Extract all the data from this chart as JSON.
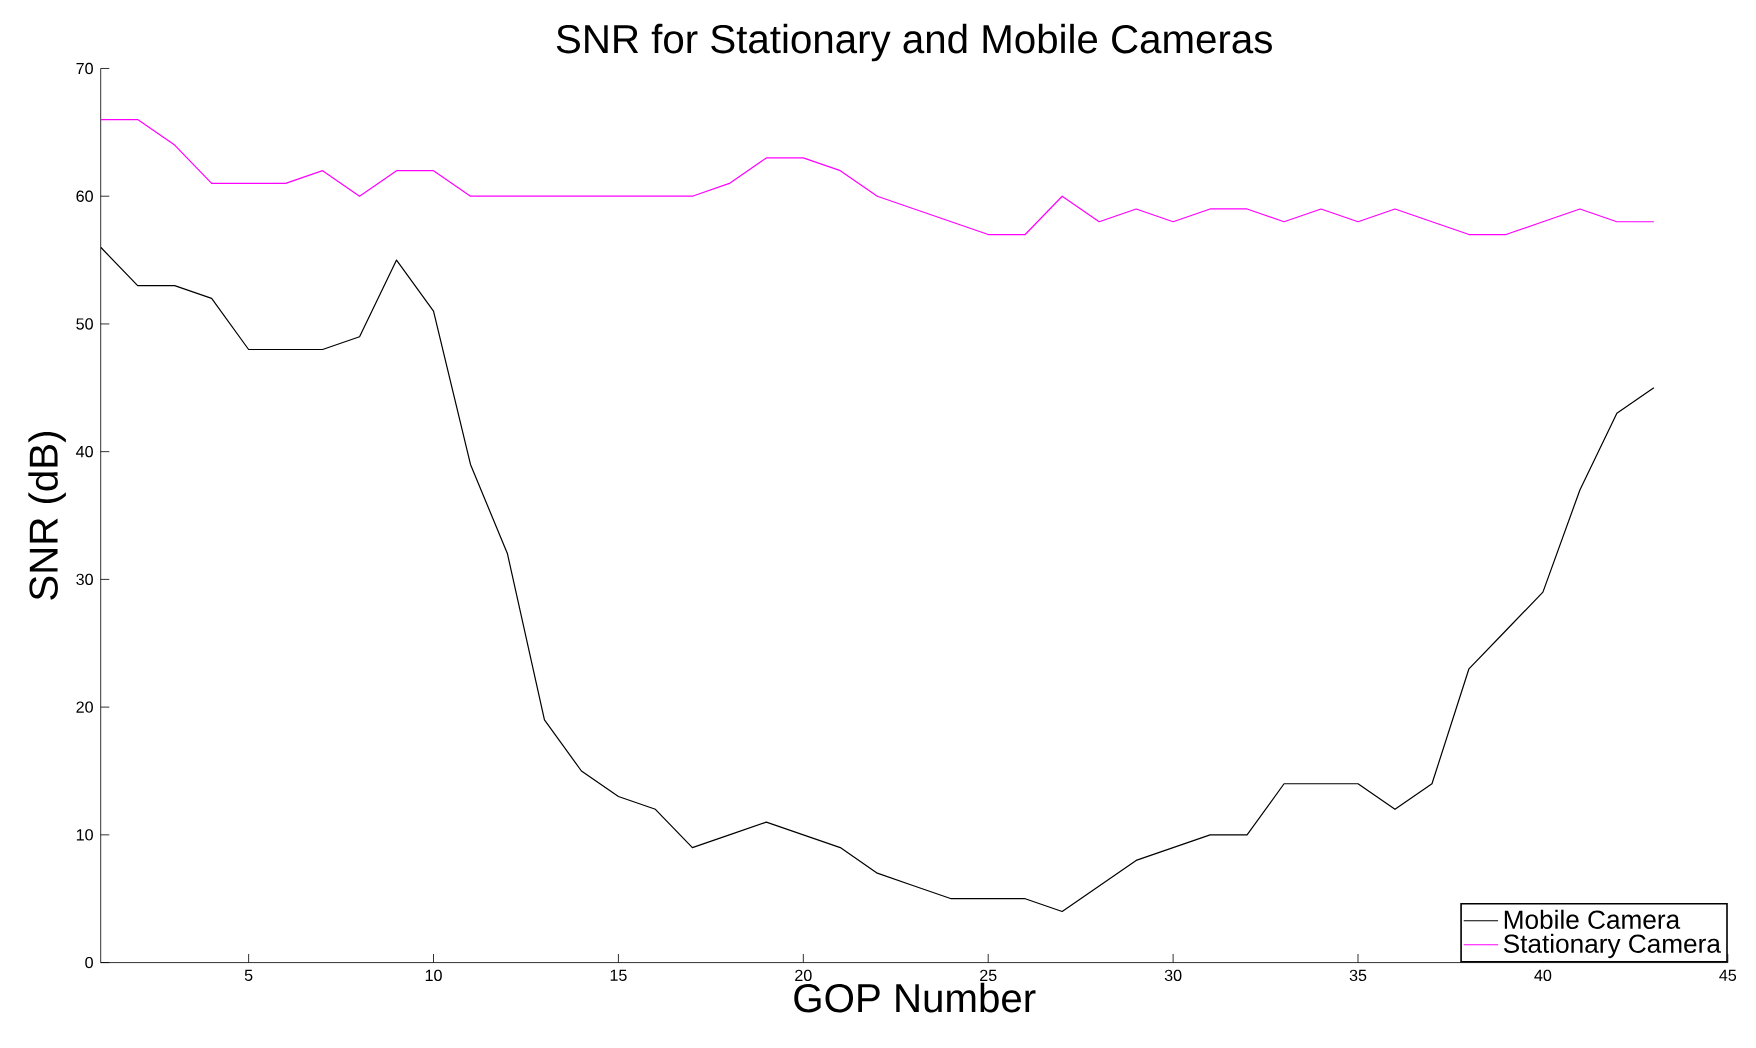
{
  "chart_data": {
    "type": "line",
    "title": "SNR for Stationary and Mobile Cameras",
    "xlabel": "GOP Number",
    "ylabel": "SNR (dB)",
    "x": [
      1,
      2,
      3,
      4,
      5,
      6,
      7,
      8,
      9,
      10,
      11,
      12,
      13,
      14,
      15,
      16,
      17,
      18,
      19,
      20,
      21,
      22,
      23,
      24,
      25,
      26,
      27,
      28,
      29,
      30,
      31,
      32,
      33,
      34,
      35,
      36,
      37,
      38,
      39,
      40,
      41,
      42,
      43
    ],
    "series": [
      {
        "name": "Mobile Camera",
        "color": "#000000",
        "values": [
          56,
          53,
          53,
          52,
          48,
          48,
          48,
          49,
          55,
          51,
          39,
          32,
          19,
          15,
          13,
          12,
          9,
          10,
          11,
          10,
          9,
          7,
          6,
          5,
          5,
          5,
          4,
          6,
          8,
          9,
          10,
          10,
          14,
          14,
          14,
          12,
          14,
          23,
          26,
          29,
          37,
          43,
          45
        ]
      },
      {
        "name": "Stationary Camera",
        "color": "#ff00ff",
        "values": [
          66,
          66,
          64,
          61,
          61,
          61,
          62,
          60,
          62,
          62,
          60,
          60,
          60,
          60,
          60,
          60,
          60,
          61,
          63,
          63,
          62,
          60,
          59,
          58,
          57,
          57,
          60,
          58,
          59,
          58,
          59,
          59,
          58,
          59,
          58,
          59,
          58,
          57,
          57,
          58,
          59,
          58,
          58
        ]
      }
    ],
    "xlim": [
      1,
      45
    ],
    "ylim": [
      0,
      70
    ],
    "xticks": [
      5,
      10,
      15,
      20,
      25,
      30,
      35,
      40,
      45
    ],
    "yticks": [
      0,
      10,
      20,
      30,
      40,
      50,
      60,
      70
    ],
    "legend": "bottom right",
    "grid": false,
    "marker": "none",
    "line_style": "solid"
  }
}
